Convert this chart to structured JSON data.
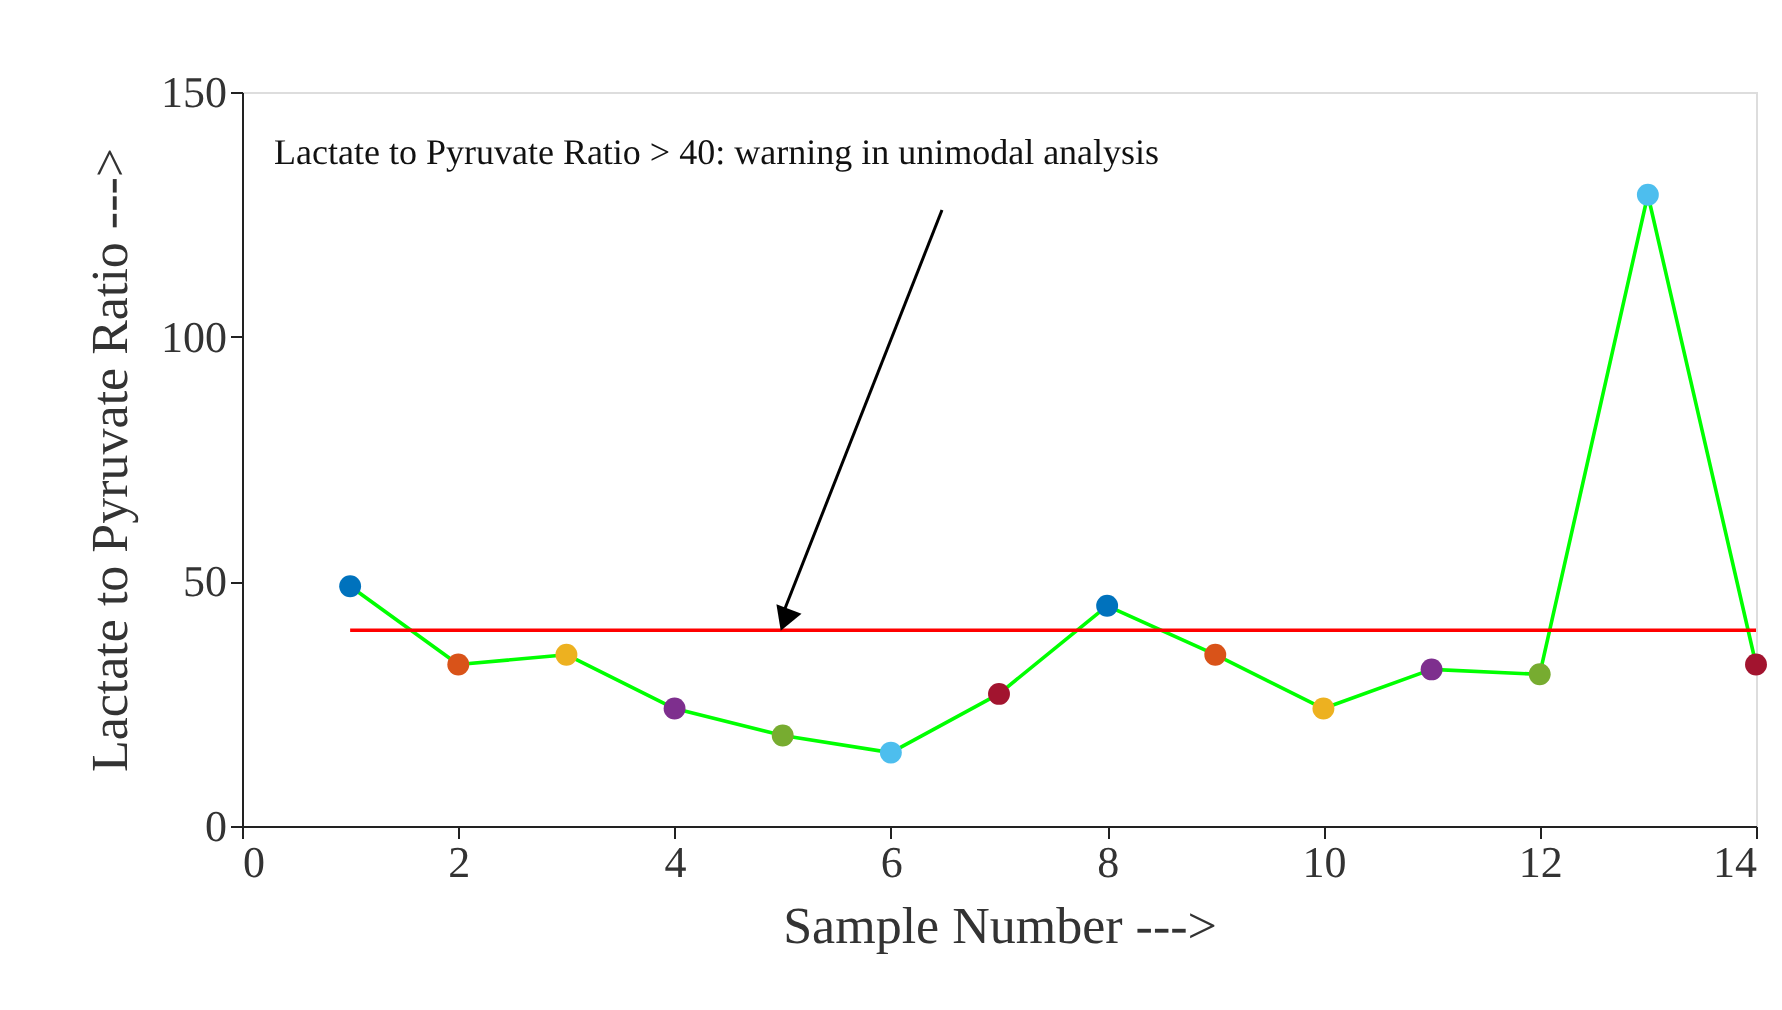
{
  "chart_data": {
    "type": "line",
    "x": [
      1,
      2,
      3,
      4,
      5,
      6,
      7,
      8,
      9,
      10,
      11,
      12,
      13,
      14
    ],
    "series": [
      {
        "color": "#00ff00",
        "marker": "circle",
        "colors": [
          "#0072bd",
          "#d95319",
          "#edb120",
          "#7e2f8e",
          "#77ac30",
          "#4dbeee",
          "#a2142f",
          "#0072bd",
          "#d95319",
          "#edb120",
          "#7e2f8e",
          "#77ac30",
          "#4dbeee",
          "#a2142f"
        ],
        "values": [
          49,
          33,
          35,
          24,
          18.5,
          15,
          27,
          45,
          35,
          24,
          32,
          31,
          129,
          33
        ]
      }
    ],
    "xlabel": "Sample Number --->",
    "ylabel": "Lactate to Pyruvate Ratio --->",
    "xlim": [
      0,
      14
    ],
    "xticks": [
      0,
      2,
      4,
      6,
      8,
      10,
      12,
      14
    ],
    "ylim": [
      0,
      150
    ],
    "yticks": [
      0,
      50,
      100,
      150
    ],
    "ref_lines": [
      {
        "axis": "y",
        "value": 40,
        "color": "#ff0000",
        "line_style": "solid"
      }
    ],
    "annotations": [
      {
        "text": "Lactate to Pyruvate Ratio > 40: warning in unimodal analysis",
        "x": 5,
        "y": 40
      }
    ],
    "grid": false
  }
}
